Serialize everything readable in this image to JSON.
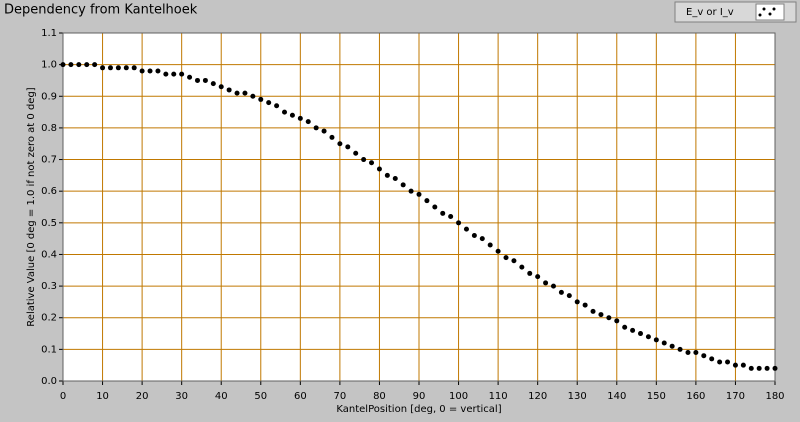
{
  "chart_data": {
    "type": "scatter",
    "title": "Dependency from Kantelhoek",
    "xlabel": "KantelPosition [deg, 0 = vertical]",
    "ylabel": "Relative Value [0 deg = 1.0 if not zero at 0 deg]",
    "series": [
      {
        "name": "E_v or I_v",
        "color": "#000000",
        "x": [
          0,
          2,
          4,
          6,
          8,
          10,
          12,
          14,
          16,
          18,
          20,
          22,
          24,
          26,
          28,
          30,
          32,
          34,
          36,
          38,
          40,
          42,
          44,
          46,
          48,
          50,
          52,
          54,
          56,
          58,
          60,
          62,
          64,
          66,
          68,
          70,
          72,
          74,
          76,
          78,
          80,
          82,
          84,
          86,
          88,
          90,
          92,
          94,
          96,
          98,
          100,
          102,
          104,
          106,
          108,
          110,
          112,
          114,
          116,
          118,
          120,
          122,
          124,
          126,
          128,
          130,
          132,
          134,
          136,
          138,
          140,
          142,
          144,
          146,
          148,
          150,
          152,
          154,
          156,
          158,
          160,
          162,
          164,
          166,
          168,
          170,
          172,
          174,
          176,
          178,
          180
        ],
        "values": [
          1.0,
          1.0,
          1.0,
          1.0,
          1.0,
          0.99,
          0.99,
          0.99,
          0.99,
          0.99,
          0.98,
          0.98,
          0.98,
          0.97,
          0.97,
          0.97,
          0.96,
          0.95,
          0.95,
          0.94,
          0.93,
          0.92,
          0.91,
          0.91,
          0.9,
          0.89,
          0.88,
          0.87,
          0.85,
          0.84,
          0.83,
          0.82,
          0.8,
          0.79,
          0.77,
          0.75,
          0.74,
          0.72,
          0.7,
          0.69,
          0.67,
          0.65,
          0.64,
          0.62,
          0.6,
          0.59,
          0.57,
          0.55,
          0.53,
          0.52,
          0.5,
          0.48,
          0.46,
          0.45,
          0.43,
          0.41,
          0.39,
          0.38,
          0.36,
          0.34,
          0.33,
          0.31,
          0.3,
          0.28,
          0.27,
          0.25,
          0.24,
          0.22,
          0.21,
          0.2,
          0.19,
          0.17,
          0.16,
          0.15,
          0.14,
          0.13,
          0.12,
          0.11,
          0.1,
          0.09,
          0.09,
          0.08,
          0.07,
          0.06,
          0.06,
          0.05,
          0.05,
          0.04,
          0.04,
          0.04,
          0.04
        ]
      }
    ],
    "xlim": [
      0,
      180
    ],
    "xticks": [
      0,
      10,
      20,
      30,
      40,
      50,
      60,
      70,
      80,
      90,
      100,
      110,
      120,
      130,
      140,
      150,
      160,
      170,
      180
    ],
    "ylim": [
      0,
      1.1
    ],
    "yticks": [
      {
        "value": 0,
        "label": "0.0"
      },
      0.1,
      0.2,
      0.3,
      0.4,
      0.5,
      0.6,
      0.7,
      0.8,
      0.9,
      {
        "value": 1,
        "label": "1.0"
      },
      1.1
    ],
    "grid": true,
    "grid_color": "#c07800",
    "legend": "top-right"
  }
}
